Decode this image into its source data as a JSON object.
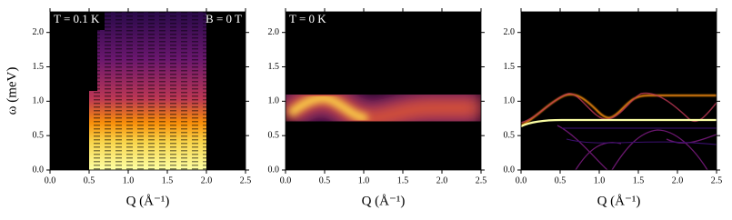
{
  "chart_data": [
    {
      "type": "heatmap",
      "xlabel": "Q (Å⁻¹)",
      "ylabel": "ω (meV)",
      "annotations": [
        {
          "text": "T = 0.1 K"
        },
        {
          "text": "B = 0 T"
        }
      ],
      "xlim": [
        0,
        2.5
      ],
      "ylim": [
        0,
        2.3
      ],
      "xticks": [
        {
          "value": 0,
          "label": "0.0"
        },
        {
          "value": 0.5,
          "label": "0.5"
        },
        {
          "value": 1,
          "label": "1.0"
        },
        {
          "value": 1.5,
          "label": "1.5"
        },
        {
          "value": 2,
          "label": "2.0"
        },
        {
          "value": 2.5,
          "label": "2.5"
        }
      ],
      "yticks": [
        {
          "value": 0,
          "label": "0.0"
        },
        {
          "value": 0.5,
          "label": "0.5"
        },
        {
          "value": 1,
          "label": "1.0"
        },
        {
          "value": 1.5,
          "label": "1.5"
        },
        {
          "value": 2,
          "label": "2.0"
        }
      ]
    },
    {
      "type": "heatmap",
      "xlabel": "Q (Å⁻¹)",
      "annotations": [
        {
          "text": "T = 0 K"
        }
      ],
      "xlim": [
        0,
        2.5
      ],
      "ylim": [
        0,
        2.3
      ],
      "xticks": [
        {
          "value": 0,
          "label": "0.0"
        },
        {
          "value": 0.5,
          "label": "0.5"
        },
        {
          "value": 1,
          "label": "1.0"
        },
        {
          "value": 1.5,
          "label": "1.5"
        },
        {
          "value": 2,
          "label": "2.0"
        },
        {
          "value": 2.5,
          "label": "2.5"
        }
      ],
      "yticks": [
        {
          "value": 0,
          "label": "0.0"
        },
        {
          "value": 0.5,
          "label": "0.5"
        },
        {
          "value": 1,
          "label": "1.0"
        },
        {
          "value": 1.5,
          "label": "1.5"
        },
        {
          "value": 2,
          "label": "2.0"
        }
      ]
    },
    {
      "type": "heatmap",
      "xlabel": "Q (Å⁻¹)",
      "xlim": [
        0,
        2.5
      ],
      "ylim": [
        0,
        2.3
      ],
      "xticks": [
        {
          "value": 0,
          "label": "0.0"
        },
        {
          "value": 0.5,
          "label": "0.5"
        },
        {
          "value": 1,
          "label": "1.0"
        },
        {
          "value": 1.5,
          "label": "1.5"
        },
        {
          "value": 2,
          "label": "2.0"
        },
        {
          "value": 2.5,
          "label": "2.5"
        }
      ],
      "yticks": [
        {
          "value": 0,
          "label": "0.0"
        },
        {
          "value": 0.5,
          "label": "0.5"
        },
        {
          "value": 1,
          "label": "1.0"
        },
        {
          "value": 1.5,
          "label": "1.5"
        },
        {
          "value": 2,
          "label": "2.0"
        }
      ]
    }
  ]
}
